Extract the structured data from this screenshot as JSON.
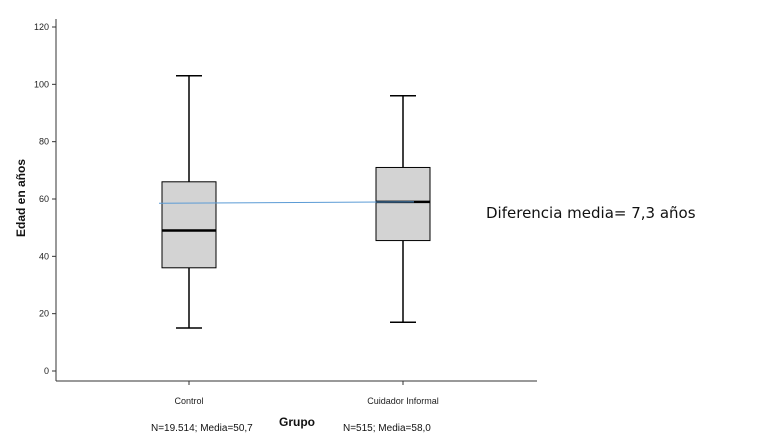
{
  "chart_data": {
    "type": "boxplot",
    "xlabel": "Grupo",
    "ylabel": "Edad en años",
    "ylim": [
      0,
      120
    ],
    "yticks": [
      0,
      20,
      40,
      60,
      80,
      100,
      120
    ],
    "categories": [
      "Control",
      "Cuidador Informal"
    ],
    "boxes": [
      {
        "category": "Control",
        "min": 15,
        "q1": 36,
        "median": 49,
        "q3": 66,
        "max": 103
      },
      {
        "category": "Cuidador Informal",
        "min": 17,
        "q1": 45.5,
        "median": 59,
        "q3": 71,
        "max": 96
      }
    ],
    "connector_line": {
      "from": 58.5,
      "to": 59,
      "color": "#5b9bd5"
    },
    "annotation": "Diferencia media= 7,3 años",
    "group_notes": [
      "N=19.514; Media=50,7",
      "N=515; Media=58,0"
    ],
    "colors": {
      "box_fill": "#d3d3d3",
      "line": "#000000"
    },
    "grid": false
  }
}
